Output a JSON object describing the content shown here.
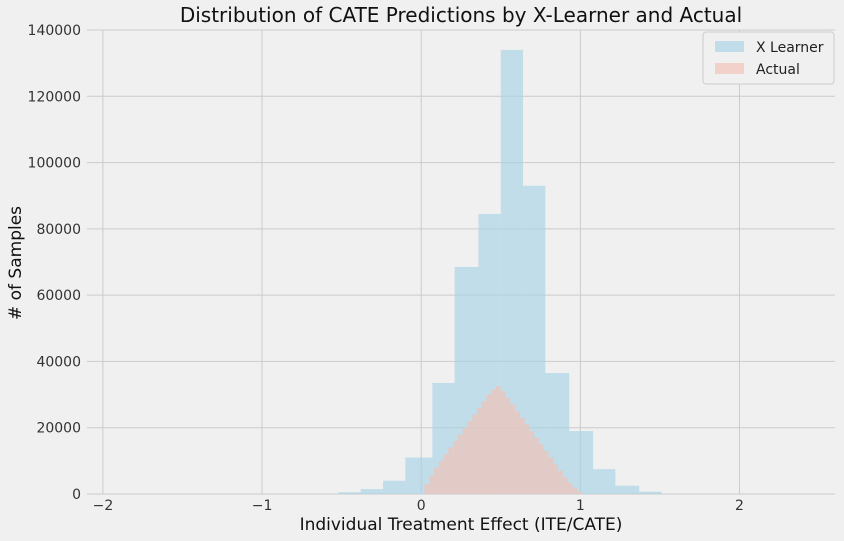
{
  "chart_data": {
    "type": "bar",
    "title": "Distribution of CATE Predictions by X-Learner and Actual",
    "xlabel": "Individual Treatment Effect (ITE/CATE)",
    "ylabel": "# of Samples",
    "xlim": [
      -2.1,
      2.6
    ],
    "ylim": [
      0,
      140000
    ],
    "xticks": [
      -2,
      -1,
      0,
      1,
      2
    ],
    "yticks": [
      0,
      20000,
      40000,
      60000,
      80000,
      100000,
      120000,
      140000
    ],
    "grid": true,
    "legend_position": "top-right",
    "series": [
      {
        "name": "X Learner",
        "color": "#a6d2e5",
        "bin_edges": [
          -0.52,
          -0.38,
          -0.24,
          -0.1,
          0.07,
          0.21,
          0.36,
          0.5,
          0.64,
          0.78,
          0.93,
          1.08,
          1.22,
          1.37,
          1.51
        ],
        "values": [
          500,
          1500,
          4000,
          11000,
          33500,
          68500,
          84500,
          134000,
          93000,
          36500,
          19000,
          7500,
          2500,
          700
        ]
      },
      {
        "name": "Actual",
        "color": "#f1c3b8",
        "bin_edges": [
          0.02,
          0.05,
          0.08,
          0.11,
          0.14,
          0.17,
          0.2,
          0.23,
          0.26,
          0.29,
          0.32,
          0.35,
          0.38,
          0.41,
          0.44,
          0.47,
          0.5,
          0.53,
          0.56,
          0.59,
          0.62,
          0.65,
          0.68,
          0.71,
          0.74,
          0.77,
          0.8,
          0.83,
          0.86,
          0.89,
          0.92,
          0.95,
          0.98,
          1.01
        ],
        "values": [
          3000,
          5500,
          8000,
          10000,
          12000,
          14000,
          16000,
          18000,
          20000,
          22000,
          24000,
          26000,
          28000,
          30000,
          31500,
          32500,
          31000,
          29000,
          27000,
          25000,
          23000,
          21000,
          19000,
          17000,
          15000,
          13000,
          11000,
          9000,
          7000,
          5000,
          3500,
          2000,
          800
        ]
      }
    ]
  }
}
